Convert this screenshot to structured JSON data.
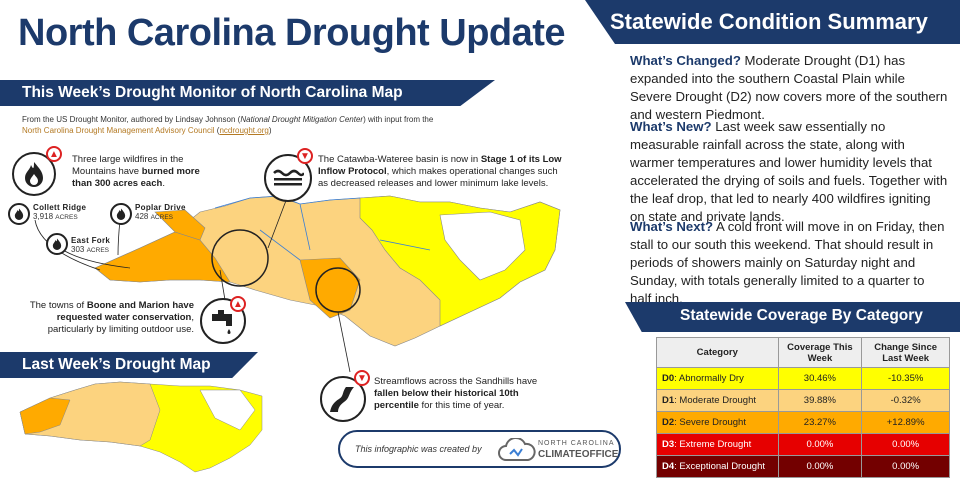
{
  "title": "North Carolina Drought Update",
  "summary": {
    "header": "Statewide Condition Summary",
    "changed_lead": "What’s Changed?",
    "changed_text": " Moderate Drought (D1) has expanded into the southern Coastal Plain while Severe Drought (D2) now covers more of the southern and western Piedmont.",
    "new_lead": "What’s New?",
    "new_text": " Last week saw essentially no measurable rainfall across the state, along with warmer temperatures and lower humidity levels that accelerated the drying of soils and fuels. Together with the leaf drop, that led to nearly 400 wildfires igniting on state and private lands.",
    "next_lead": "What’s Next?",
    "next_text": " A cold front will move in on Friday, then stall to our south this weekend. That should result in periods of showers mainly on Saturday night and Sunday, with totals generally limited to a quarter to half inch."
  },
  "coverage": {
    "header": "Statewide Coverage By Category",
    "columns": [
      "Category",
      "Coverage This Week",
      "Change Since Last Week"
    ],
    "rows": [
      {
        "code": "D0",
        "label": ": Abnormally Dry",
        "coverage": "30.46%",
        "change": "-10.35%",
        "color": "#ffff00",
        "text": "#222"
      },
      {
        "code": "D1",
        "label": ": Moderate Drought",
        "coverage": "39.88%",
        "change": "-0.32%",
        "color": "#fcd37f",
        "text": "#222"
      },
      {
        "code": "D2",
        "label": ": Severe Drought",
        "coverage": "23.27%",
        "change": "+12.89%",
        "color": "#ffaa00",
        "text": "#222"
      },
      {
        "code": "D3",
        "label": ": Extreme Drought",
        "coverage": "0.00%",
        "change": "0.00%",
        "color": "#e60000",
        "text": "#fff"
      },
      {
        "code": "D4",
        "label": ": Exceptional Drought",
        "coverage": "0.00%",
        "change": "0.00%",
        "color": "#730000",
        "text": "#fff"
      }
    ]
  },
  "this_week": {
    "header": "This Week’s Drought Monitor of North Carolina Map",
    "author_pre": "From the US Drought Monitor, authored by Lindsay Johnson (",
    "author_org": "National Drought Mitigation Center",
    "author_mid": ") with input from the ",
    "author_council": "North Carolina Drought Management Advisory Council",
    "author_link": "ncdrought.org"
  },
  "notes": {
    "wildfires_pre": "Three large wildfires in the Mountains have ",
    "wildfires_bold": "burned more than 300 acres each",
    "wildfires_post": ".",
    "catawba_pre": "The Catawba-Wateree basin is now in ",
    "catawba_bold": "Stage 1 of its Low Inflow Protocol",
    "catawba_post": ", which makes operational changes such as decreased releases and lower minimum lake levels.",
    "boone_pre": "The towns of ",
    "boone_bold": "Boone and Marion have requested water conservation",
    "boone_post": ", particularly by limiting outdoor use.",
    "stream_pre": "Streamflows across the Sandhills have ",
    "stream_bold": "fallen below their historical 10th percentile",
    "stream_post": " for this time of year."
  },
  "fires": [
    {
      "name": "Collett Ridge",
      "acres": "3,918",
      "unit": "acres"
    },
    {
      "name": "Poplar Drive",
      "acres": "428",
      "unit": "acres"
    },
    {
      "name": "East Fork",
      "acres": "303",
      "unit": "acres"
    }
  ],
  "last_week": {
    "header": "Last Week’s Drought Map"
  },
  "credit": {
    "text": "This infographic was created by",
    "logo_small": "NORTH CAROLINA",
    "logo_main": "CLIMATEOFFICE"
  },
  "colors": {
    "navy": "#1c3a6b",
    "d0": "#ffff00",
    "d1": "#fcd37f",
    "d2": "#ffaa00",
    "alert": "#d22222"
  },
  "icons": [
    "fire-icon",
    "water-level-icon",
    "faucet-icon",
    "stream-icon",
    "arrow-up-icon",
    "arrow-down-icon"
  ]
}
